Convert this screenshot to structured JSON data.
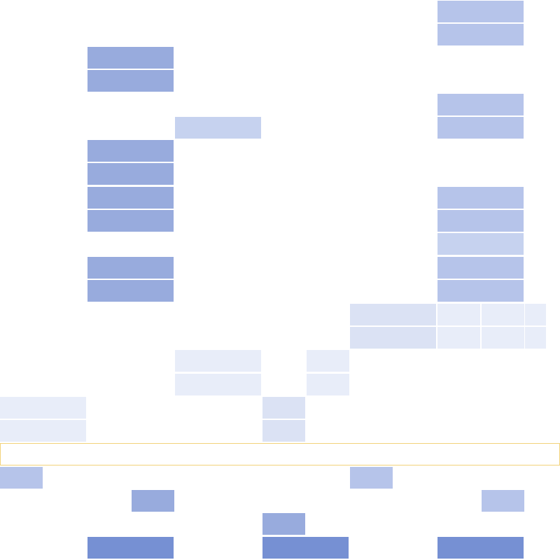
{
  "palette": {
    "c1": "#98abdd",
    "c2": "#b6c4ea",
    "c3": "#c6d2ef",
    "c4": "#dbe2f4",
    "c5": "#e8edf9",
    "c6": "#7690d3",
    "highlight_border": "#f2d27a"
  }
}
